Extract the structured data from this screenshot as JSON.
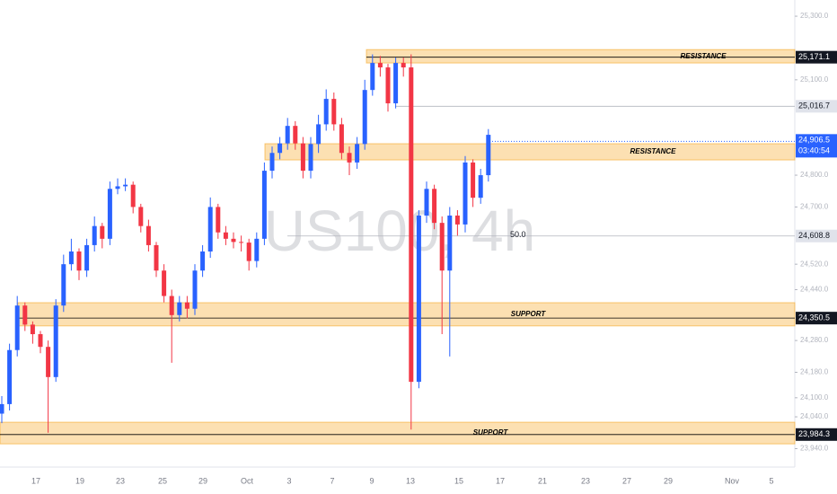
{
  "chart_data": {
    "type": "candlestick",
    "watermark": "US100, 4h",
    "up_color": "#2962ff",
    "down_color": "#f23645",
    "ylim": [
      23882,
      25351
    ],
    "yticks": [
      {
        "value": 25300,
        "label": "25,300.0"
      },
      {
        "value": 25100,
        "label": "25,100.0"
      },
      {
        "value": 24800,
        "label": "24,800.0"
      },
      {
        "value": 24700,
        "label": "24,700.0"
      },
      {
        "value": 24520,
        "label": "24,520.0"
      },
      {
        "value": 24440,
        "label": "24,440.0"
      },
      {
        "value": 24280,
        "label": "24,280.0"
      },
      {
        "value": 24180,
        "label": "24,180.0"
      },
      {
        "value": 24100,
        "label": "24,100.0"
      },
      {
        "value": 24040,
        "label": "24,040.0"
      },
      {
        "value": 23940,
        "label": "23,940.0"
      }
    ],
    "x_labels": [
      "17",
      "19",
      "23",
      "25",
      "29",
      "Oct",
      "3",
      "7",
      "9",
      "13",
      "15",
      "17",
      "21",
      "23",
      "27",
      "29",
      "Nov",
      "5"
    ],
    "open": [
      24050,
      24080,
      24250,
      24390,
      24330,
      24300,
      24260,
      24165,
      24390,
      24520,
      24560,
      24500,
      24580,
      24640,
      24600,
      24757,
      24765,
      24770,
      24700,
      24640,
      24580,
      24500,
      24420,
      24360,
      24400,
      24380,
      24500,
      24560,
      24700,
      24620,
      24600,
      24590,
      24588,
      24530,
      24600,
      24814,
      24870,
      24900,
      24955,
      24900,
      24814,
      24898,
      24960,
      25040,
      24960,
      24870,
      24840,
      24898,
      25068,
      25153,
      25139,
      25026,
      25153,
      25139,
      24150,
      24673,
      24757,
      24650,
      24500,
      24673,
      24645,
      24840,
      24729,
      24800
    ],
    "high": [
      24105,
      24270,
      24420,
      24400,
      24340,
      24310,
      24280,
      24410,
      24550,
      24600,
      24570,
      24600,
      24670,
      24650,
      24780,
      24790,
      24790,
      24780,
      24710,
      24660,
      24590,
      24520,
      24440,
      24420,
      24420,
      24520,
      24580,
      24730,
      24710,
      24640,
      24620,
      24610,
      24600,
      24620,
      24840,
      24890,
      24920,
      24980,
      24970,
      24920,
      24920,
      24990,
      25070,
      25060,
      24980,
      24890,
      24920,
      25100,
      25180,
      25175,
      25150,
      25170,
      25170,
      25180,
      24690,
      24780,
      24770,
      24670,
      24700,
      24690,
      24860,
      24850,
      24820,
      24945
    ],
    "low": [
      24020,
      24060,
      24230,
      24310,
      24270,
      24240,
      23990,
      24150,
      24370,
      24500,
      24470,
      24480,
      24560,
      24570,
      24580,
      24740,
      24750,
      24680,
      24620,
      24560,
      24480,
      24400,
      24210,
      24340,
      24350,
      24360,
      24480,
      24540,
      24600,
      24580,
      24570,
      24560,
      24500,
      24510,
      24580,
      24790,
      24850,
      24880,
      24880,
      24790,
      24790,
      24870,
      24940,
      24940,
      24850,
      24800,
      24820,
      24880,
      25050,
      25110,
      25000,
      25010,
      25110,
      24000,
      24130,
      24650,
      24630,
      24300,
      24230,
      24610,
      24620,
      24700,
      24710,
      24780
    ],
    "close": [
      24080,
      24250,
      24390,
      24330,
      24300,
      24260,
      24165,
      24390,
      24520,
      24560,
      24500,
      24580,
      24640,
      24600,
      24757,
      24765,
      24770,
      24700,
      24640,
      24580,
      24500,
      24420,
      24360,
      24400,
      24380,
      24500,
      24560,
      24700,
      24620,
      24600,
      24590,
      24588,
      24530,
      24600,
      24814,
      24870,
      24900,
      24955,
      24900,
      24814,
      24898,
      24960,
      25040,
      24960,
      24870,
      24840,
      24898,
      25068,
      25153,
      25139,
      25026,
      25153,
      25139,
      24150,
      24673,
      24757,
      24650,
      24500,
      24673,
      24645,
      24840,
      24729,
      24800,
      24927
    ],
    "zones": [
      {
        "top": 25195,
        "bottom": 25153,
        "text": "RESISTANCE"
      },
      {
        "top": 24899,
        "bottom": 24848,
        "text": "RESISTANCE"
      },
      {
        "top": 24399,
        "bottom": 24326,
        "text": "SUPPORT"
      },
      {
        "top": 24023,
        "bottom": 23955,
        "text": "SUPPORT"
      }
    ],
    "levels": [
      {
        "value": 25171.1,
        "label": "25,171.1"
      },
      {
        "value": 25016.7,
        "label": "25,016.7"
      },
      {
        "value": 24608.8,
        "label": "24,608.8",
        "fib": "50.0"
      },
      {
        "value": 24350.5,
        "label": "24,350.5"
      },
      {
        "value": 23984.3,
        "label": "23,984.3"
      }
    ],
    "current_price": {
      "value": 24906.5,
      "label": "24,906.5",
      "countdown": "03:40:54"
    }
  }
}
